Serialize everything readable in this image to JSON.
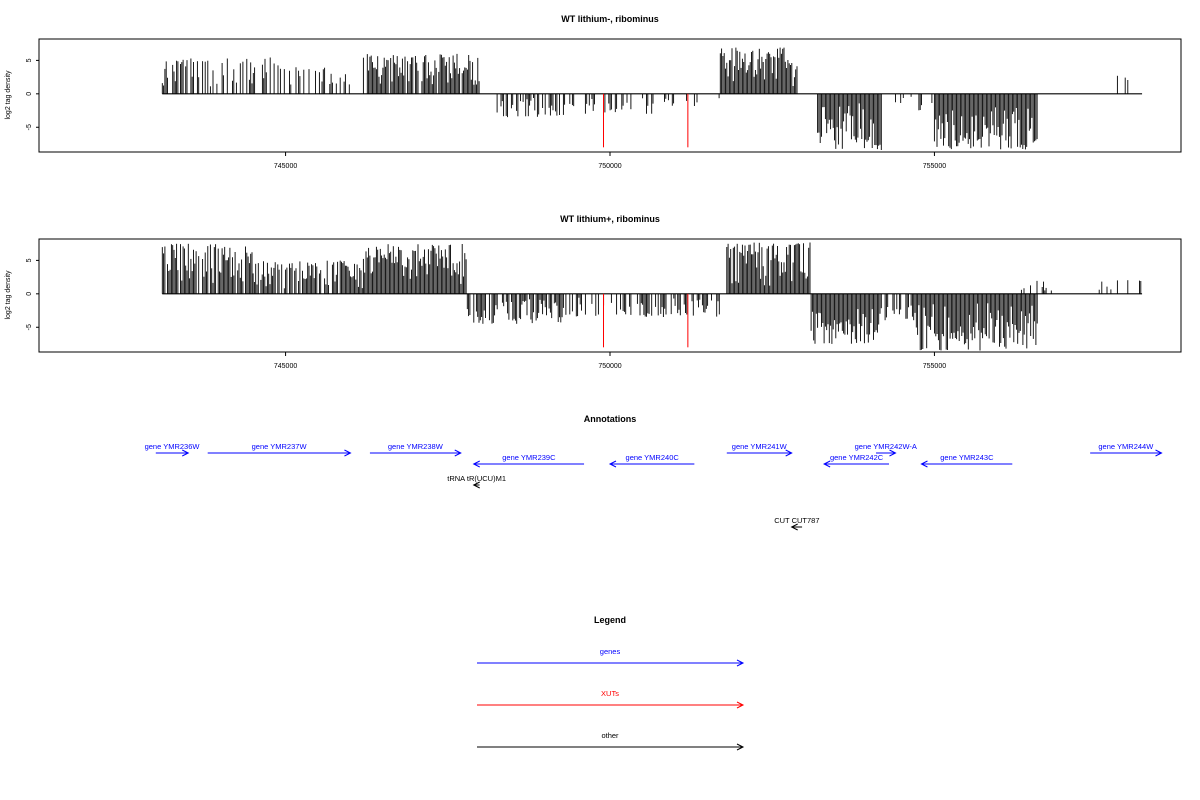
{
  "chart_data": [
    {
      "type": "bar",
      "title": "WT lithium-, ribominus",
      "ylabel": "log2 tag density",
      "xlim": [
        741200,
        758800
      ],
      "ylim": [
        -8.7,
        8.2
      ],
      "x_ticks": [
        745000,
        750000,
        755000
      ],
      "y_ticks": [
        -5,
        0,
        5
      ],
      "y_tick_labels": [
        "-5",
        "0",
        "5"
      ],
      "x_tick_labels": [
        "745000",
        "750000",
        "755000"
      ],
      "baseline_range": [
        743100,
        758200
      ],
      "series": [
        {
          "strand": "+",
          "region": [
            743100,
            744900
          ],
          "max": 5.5,
          "density": 0.45
        },
        {
          "strand": "+",
          "region": [
            744900,
            746000
          ],
          "max": 4.0,
          "density": 0.4
        },
        {
          "strand": "+",
          "region": [
            746200,
            748000
          ],
          "max": 6.0,
          "density": 0.9
        },
        {
          "strand": "-",
          "region": [
            748100,
            749300
          ],
          "max": -3.5,
          "density": 0.5
        },
        {
          "strand": "-",
          "region": [
            749300,
            750700
          ],
          "max": -3.0,
          "density": 0.4
        },
        {
          "strand": "-",
          "region": [
            750700,
            751700
          ],
          "max": -2.0,
          "density": 0.2
        },
        {
          "strand": "+",
          "region": [
            751700,
            752900
          ],
          "max": 7.0,
          "density": 1.0
        },
        {
          "strand": "-",
          "region": [
            753200,
            754200
          ],
          "max": -8.5,
          "density": 1.0
        },
        {
          "strand": "-",
          "region": [
            754300,
            755000
          ],
          "max": -2.5,
          "density": 0.3
        },
        {
          "strand": "-",
          "region": [
            755000,
            756600
          ],
          "max": -8.5,
          "density": 1.0
        },
        {
          "strand": "+",
          "region": [
            757800,
            758000
          ],
          "max": 2.8,
          "density": 0.2
        }
      ],
      "xut_markers": [
        749900,
        751200
      ],
      "xut_depth": -8.0
    },
    {
      "type": "bar",
      "title": "WT lithium+, ribominus",
      "ylabel": "log2 tag density",
      "xlim": [
        741200,
        758800
      ],
      "ylim": [
        -8.7,
        8.2
      ],
      "x_ticks": [
        745000,
        750000,
        755000
      ],
      "y_ticks": [
        -5,
        0,
        5
      ],
      "y_tick_labels": [
        "-5",
        "0",
        "5"
      ],
      "x_tick_labels": [
        "745000",
        "750000",
        "755000"
      ],
      "baseline_range": [
        743100,
        758200
      ],
      "series": [
        {
          "strand": "+",
          "region": [
            743100,
            744500
          ],
          "max": 7.5,
          "density": 0.9
        },
        {
          "strand": "+",
          "region": [
            744500,
            746200
          ],
          "max": 5.0,
          "density": 0.8
        },
        {
          "strand": "+",
          "region": [
            746200,
            747800
          ],
          "max": 7.5,
          "density": 1.0
        },
        {
          "strand": "-",
          "region": [
            747800,
            749300
          ],
          "max": -4.5,
          "density": 0.7
        },
        {
          "strand": "-",
          "region": [
            749300,
            751700
          ],
          "max": -3.5,
          "density": 0.5
        },
        {
          "strand": "+",
          "region": [
            751800,
            753100
          ],
          "max": 7.8,
          "density": 1.0
        },
        {
          "strand": "-",
          "region": [
            753100,
            754200
          ],
          "max": -7.5,
          "density": 1.0
        },
        {
          "strand": "-",
          "region": [
            754200,
            754700
          ],
          "max": -4.0,
          "density": 0.5
        },
        {
          "strand": "-",
          "region": [
            754700,
            756600
          ],
          "max": -8.5,
          "density": 1.0
        },
        {
          "strand": "+",
          "region": [
            756300,
            756900
          ],
          "max": 2.0,
          "density": 0.15
        },
        {
          "strand": "+",
          "region": [
            757500,
            758200
          ],
          "max": 2.2,
          "density": 0.3
        }
      ],
      "xut_markers": [
        749900,
        751200
      ],
      "xut_depth": -8.0
    }
  ],
  "annotations": {
    "title": "Annotations",
    "features": [
      {
        "label": "gene YMR236W",
        "start": 743000,
        "end": 743500,
        "strand": "+",
        "type": "gene",
        "row": 0
      },
      {
        "label": "gene YMR237W",
        "start": 743800,
        "end": 746000,
        "strand": "+",
        "type": "gene",
        "row": 0
      },
      {
        "label": "gene YMR238W",
        "start": 746300,
        "end": 747700,
        "strand": "+",
        "type": "gene",
        "row": 0
      },
      {
        "label": "gene YMR239C",
        "start": 747900,
        "end": 749600,
        "strand": "-",
        "type": "gene",
        "row": 1
      },
      {
        "label": "gene YMR240C",
        "start": 750000,
        "end": 751300,
        "strand": "-",
        "type": "gene",
        "row": 1
      },
      {
        "label": "gene YMR241W",
        "start": 751800,
        "end": 752800,
        "strand": "+",
        "type": "gene",
        "row": 0
      },
      {
        "label": "gene YMR242C",
        "start": 753300,
        "end": 754300,
        "strand": "-",
        "type": "gene",
        "row": 1
      },
      {
        "label": "gene YMR242W-A",
        "start": 754100,
        "end": 754400,
        "strand": "+",
        "type": "gene",
        "row": 0
      },
      {
        "label": "gene YMR243C",
        "start": 754800,
        "end": 756200,
        "strand": "-",
        "type": "gene",
        "row": 1
      },
      {
        "label": "gene YMR244W",
        "start": 757400,
        "end": 758500,
        "strand": "+",
        "type": "gene",
        "row": 0
      },
      {
        "label": "tRNA tR(UCU)M1",
        "start": 747900,
        "end": 747990,
        "strand": "-",
        "type": "other",
        "row": 2
      },
      {
        "label": "CUT CUT787",
        "start": 752800,
        "end": 752960,
        "strand": "-",
        "type": "other",
        "row": 3
      }
    ]
  },
  "legend": {
    "title": "Legend",
    "items": [
      {
        "label": "genes",
        "color": "#0000ff"
      },
      {
        "label": "XUTs",
        "color": "#ff0000"
      },
      {
        "label": "other",
        "color": "#000000"
      }
    ]
  }
}
